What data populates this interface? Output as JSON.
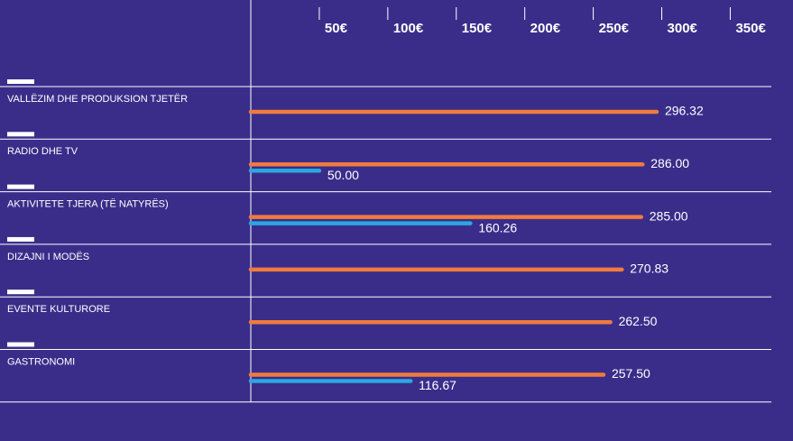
{
  "chart_data": {
    "type": "bar",
    "orientation": "horizontal",
    "categories": [
      "VALLËZIM DHE PRODUKSION TJETËR",
      "RADIO DHE TV",
      "AKTIVITETE TJERA (TË NATYRËS)",
      "DIZAJNI I MODËS",
      "EVENTE KULTURORE",
      "GASTRONOMI"
    ],
    "series": [
      {
        "color": "#f07b3f",
        "values": [
          296.32,
          286.0,
          285.0,
          270.83,
          262.5,
          257.5
        ],
        "value_labels": [
          "296.32",
          "286.00",
          "285.00",
          "270.83",
          "262.50",
          "257.50"
        ]
      },
      {
        "color": "#2aa7e1",
        "values": [
          null,
          50.0,
          160.26,
          null,
          null,
          116.67
        ],
        "value_labels": [
          null,
          "50.00",
          "160.26",
          null,
          null,
          "116.67"
        ]
      }
    ],
    "xlim": [
      0,
      380
    ],
    "xticks": [
      {
        "value": 50,
        "label": "50€"
      },
      {
        "value": 100,
        "label": "100€"
      },
      {
        "value": 150,
        "label": "150€"
      },
      {
        "value": 200,
        "label": "200€"
      },
      {
        "value": 250,
        "label": "250€"
      },
      {
        "value": 300,
        "label": "300€"
      },
      {
        "value": 350,
        "label": "350€"
      }
    ]
  }
}
